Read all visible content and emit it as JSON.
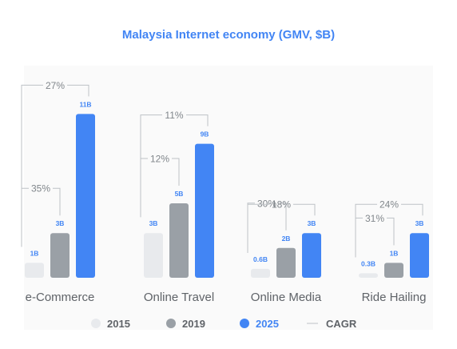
{
  "chart_data": {
    "type": "bar",
    "title": "Malaysia Internet economy (GMV, $B)",
    "categories": [
      "e-Commerce",
      "Online Travel",
      "Online Media",
      "Ride Hailing"
    ],
    "series": [
      {
        "name": "2015",
        "color": "#e8eaed",
        "values": [
          1,
          3,
          0.6,
          0.3
        ],
        "labels": [
          "1B",
          "3B",
          "0.6B",
          "0.3B"
        ]
      },
      {
        "name": "2019",
        "color": "#9aa0a6",
        "values": [
          3,
          5,
          2,
          1
        ],
        "labels": [
          "3B",
          "5B",
          "2B",
          "1B"
        ]
      },
      {
        "name": "2025",
        "color": "#4285f4",
        "values": [
          11,
          9,
          3,
          3
        ],
        "labels": [
          "11B",
          "9B",
          "3B",
          "3B"
        ]
      }
    ],
    "cagr": [
      {
        "category": "e-Commerce",
        "cagr_2015_2019": "35%",
        "cagr_2019_2025": "27%"
      },
      {
        "category": "Online Travel",
        "cagr_2015_2019": "12%",
        "cagr_2019_2025": "11%"
      },
      {
        "category": "Online Media",
        "cagr_2015_2019": "30%",
        "cagr_2019_2025": "18%"
      },
      {
        "category": "Ride Hailing",
        "cagr_2015_2019": "31%",
        "cagr_2019_2025": "24%"
      }
    ],
    "legend": {
      "placement": "bottom",
      "items": [
        "2015",
        "2019",
        "2025"
      ],
      "cagr_label": "CAGR"
    },
    "ylim": [
      0,
      11
    ],
    "grid": false,
    "colors": {
      "title": "#4285f4",
      "value_label_2025": "#4285f4",
      "value_label_other": "#4285f4",
      "bracket": "#bdc1c6",
      "category_text": "#5f6368",
      "cagr_text": "#80868b",
      "panel_bg": "#f8f9fa"
    }
  }
}
